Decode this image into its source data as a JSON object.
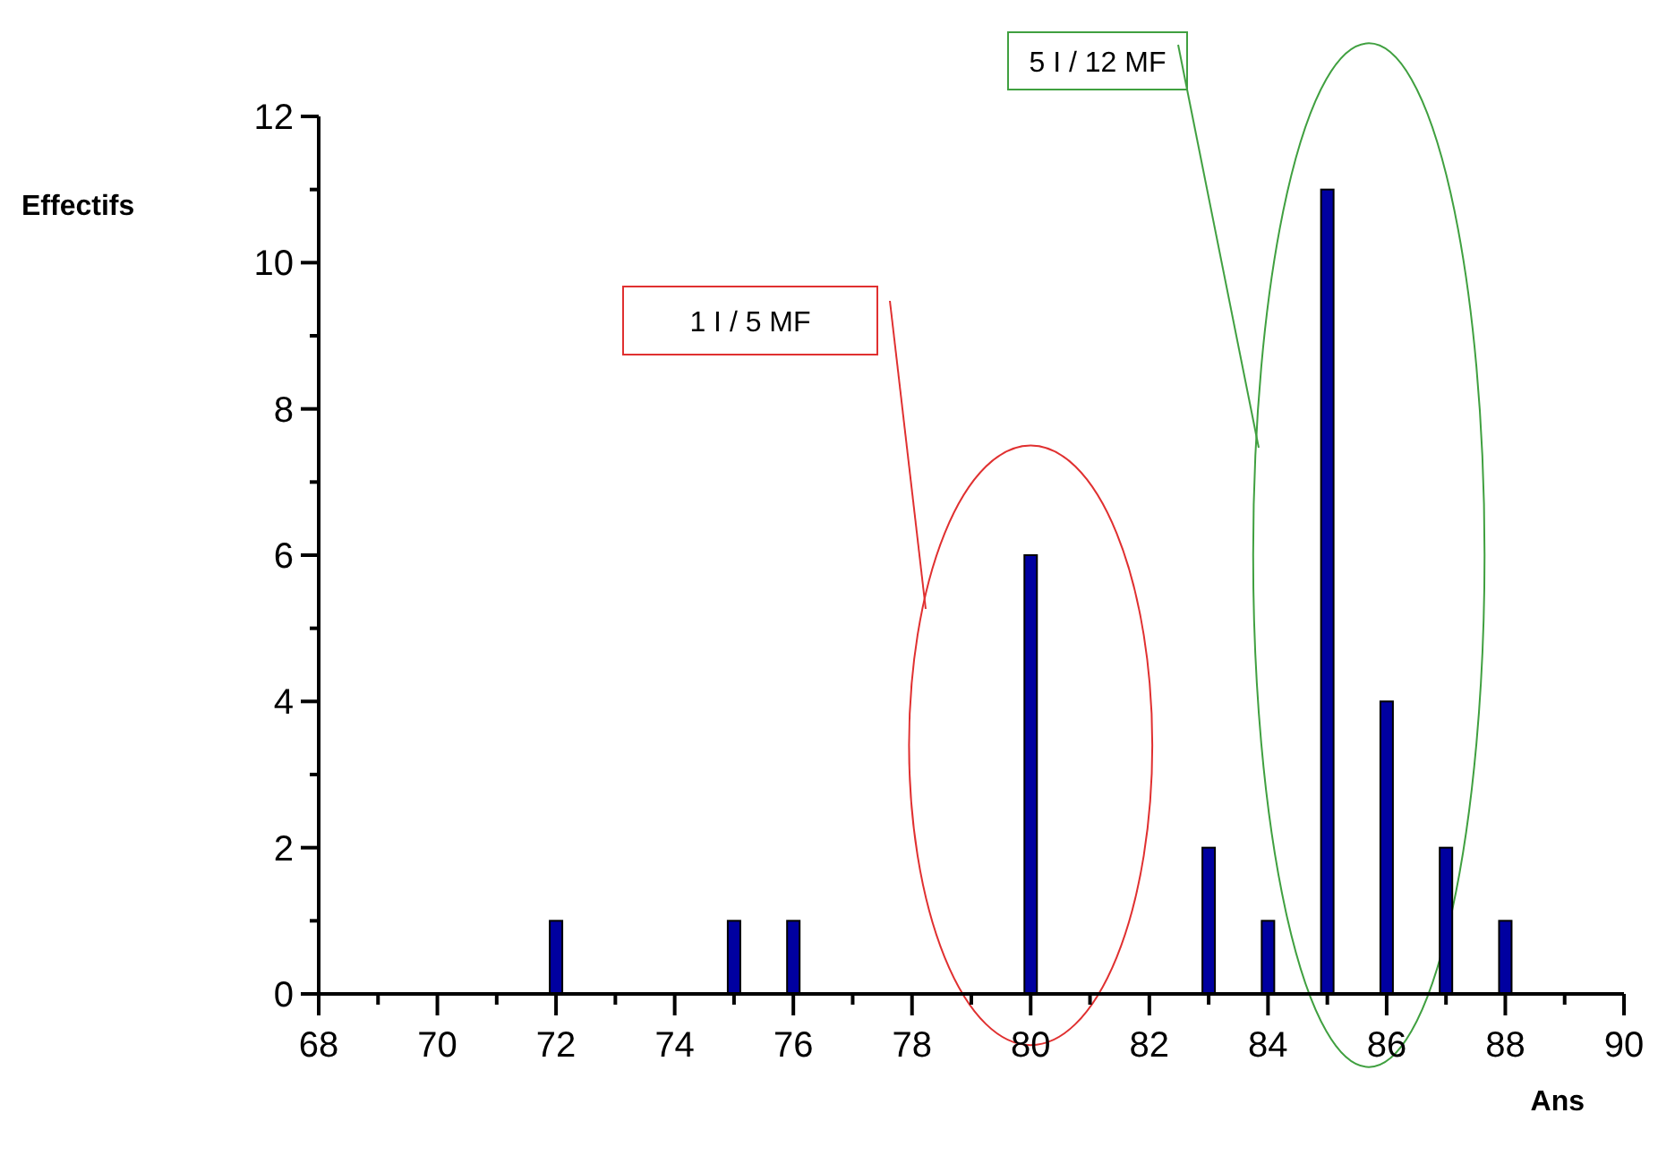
{
  "chart_data": {
    "type": "bar",
    "xlabel": "Ans",
    "ylabel": "Effectifs",
    "x": [
      72,
      75,
      76,
      80,
      83,
      84,
      85,
      86,
      87,
      88
    ],
    "values": [
      1,
      1,
      1,
      6,
      2,
      1,
      11,
      4,
      2,
      1
    ],
    "color": "#0000a0",
    "xlim": [
      68,
      90
    ],
    "xticks": [
      68,
      {
        "value": 69,
        "label": null
      },
      70,
      {
        "value": 71,
        "label": null
      },
      72,
      {
        "value": 73,
        "label": null
      },
      74,
      {
        "value": 75,
        "label": null
      },
      76,
      {
        "value": 77,
        "label": null
      },
      78,
      {
        "value": 79,
        "label": null
      },
      80,
      {
        "value": 81,
        "label": null
      },
      82,
      {
        "value": 83,
        "label": null
      },
      84,
      {
        "value": 85,
        "label": null
      },
      86,
      {
        "value": 87,
        "label": null
      },
      88,
      {
        "value": 89,
        "label": null
      },
      90
    ],
    "ylim": [
      0,
      12
    ],
    "yticks": [
      0,
      {
        "value": 1,
        "label": null
      },
      2,
      {
        "value": 3,
        "label": null
      },
      4,
      {
        "value": 5,
        "label": null
      },
      6,
      {
        "value": 7,
        "label": null
      },
      8,
      {
        "value": 9,
        "label": null
      },
      10,
      {
        "value": 11,
        "label": null
      },
      12
    ],
    "annotations": [
      "1 I / 5 MF",
      "5 I / 12 MF"
    ]
  }
}
